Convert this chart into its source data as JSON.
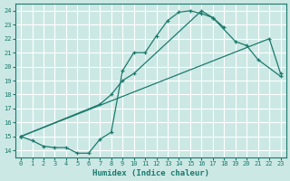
{
  "title": "",
  "xlabel": "Humidex (Indice chaleur)",
  "bg_color": "#cce8e4",
  "line_color": "#1a7a6e",
  "grid_color": "#ffffff",
  "xlim": [
    -0.5,
    23.5
  ],
  "ylim": [
    13.5,
    24.5
  ],
  "xticks": [
    0,
    1,
    2,
    3,
    4,
    5,
    6,
    7,
    8,
    9,
    10,
    11,
    12,
    13,
    14,
    15,
    16,
    17,
    18,
    19,
    20,
    21,
    22,
    23
  ],
  "yticks": [
    14,
    15,
    16,
    17,
    18,
    19,
    20,
    21,
    22,
    23,
    24
  ],
  "line1": {
    "x": [
      0,
      1,
      2,
      3,
      4,
      5,
      6,
      7,
      8,
      9,
      10,
      11,
      12,
      13,
      14,
      15,
      16,
      17,
      18
    ],
    "y": [
      15.0,
      14.7,
      14.3,
      14.2,
      14.2,
      13.8,
      13.8,
      14.8,
      15.3,
      19.7,
      21.0,
      21.0,
      22.2,
      23.3,
      23.9,
      24.0,
      23.8,
      23.5,
      22.8
    ]
  },
  "line2": {
    "x": [
      0,
      7,
      8,
      9,
      10,
      16,
      17,
      19,
      20,
      21,
      23
    ],
    "y": [
      15.0,
      17.3,
      18.0,
      19.0,
      19.5,
      24.0,
      23.5,
      21.8,
      21.5,
      20.5,
      19.3
    ]
  },
  "line3": {
    "x": [
      0,
      22,
      23
    ],
    "y": [
      15.0,
      22.0,
      19.5
    ]
  }
}
